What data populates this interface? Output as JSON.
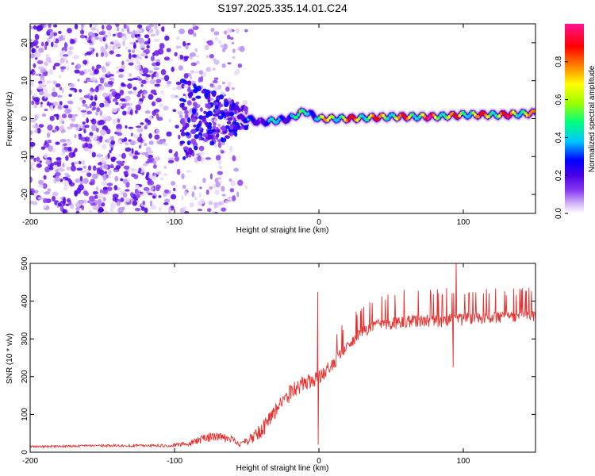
{
  "figure_title": "S197.2025.335.14.01.C24",
  "chart_data": [
    {
      "type": "heatmap",
      "title": "S197.2025.335.14.01.C24",
      "xlabel": "Height of straight line (km)",
      "ylabel": "Frequency (Hz)",
      "xlim": [
        -200,
        150
      ],
      "ylim": [
        -25,
        25
      ],
      "xticks": [
        -200,
        -100,
        0,
        100
      ],
      "xtick_labels": [
        "-200",
        "-100",
        "0",
        "100"
      ],
      "yticks": [
        -20,
        -10,
        0,
        10,
        20
      ],
      "ytick_labels": [
        "-20",
        "-10",
        "0",
        "10",
        "20"
      ],
      "colorbar": {
        "label": "Normalized spectral amplitude",
        "range": [
          0,
          1
        ],
        "ticks": [
          0,
          0.2,
          0.4,
          0.6,
          0.8
        ],
        "tick_labels": [
          "0.0",
          "0.2",
          "0.4",
          "0.6",
          "0.8"
        ],
        "colormap": [
          "#ffffff",
          "#d5b8f8",
          "#8a3cf0",
          "#5500e0",
          "#0000ff",
          "#00c8ff",
          "#00ff80",
          "#9bff00",
          "#ffff00",
          "#ff8000",
          "#ff0000",
          "#ff1493"
        ]
      },
      "ridge": {
        "description_regions": [
          "scattered noise",
          "transition",
          "stable line"
        ],
        "x": [
          -200,
          -100,
          -60,
          -50,
          -40,
          -20,
          -10,
          0,
          20,
          50,
          80,
          100,
          130,
          150
        ],
        "frequency_hz": [
          0,
          3,
          0,
          0,
          -1,
          0,
          2,
          0,
          0,
          0.5,
          0.5,
          1,
          1,
          1.5
        ],
        "amplitude": [
          0.1,
          0.2,
          0.25,
          0.4,
          0.45,
          0.55,
          0.6,
          0.7,
          0.95,
          0.85,
          0.95,
          0.85,
          0.95,
          0.8
        ]
      }
    },
    {
      "type": "line",
      "xlabel": "Height of straight line (km)",
      "ylabel": "SNR (10 * v/v)",
      "xlim": [
        -200,
        150
      ],
      "ylim": [
        0,
        500
      ],
      "xticks": [
        -200,
        -100,
        0,
        100
      ],
      "xtick_labels": [
        "-200",
        "-100",
        "0",
        "100"
      ],
      "yticks": [
        0,
        100,
        200,
        300,
        400,
        500
      ],
      "ytick_labels": [
        "0",
        "100",
        "200",
        "300",
        "400",
        "500"
      ],
      "color": "#e8302e",
      "series": [
        {
          "name": "SNR",
          "x": [
            -200,
            -150,
            -110,
            -100,
            -90,
            -80,
            -70,
            -60,
            -55,
            -50,
            -40,
            -30,
            -20,
            -10,
            0,
            10,
            20,
            30,
            40,
            50,
            60,
            80,
            100,
            120,
            150
          ],
          "base": [
            15,
            18,
            18,
            20,
            22,
            40,
            45,
            35,
            20,
            30,
            60,
            110,
            160,
            190,
            200,
            240,
            280,
            320,
            340,
            345,
            350,
            350,
            355,
            360,
            365
          ],
          "amp": [
            10,
            12,
            15,
            20,
            30,
            50,
            50,
            40,
            20,
            50,
            80,
            90,
            90,
            80,
            80,
            70,
            60,
            60,
            60,
            70,
            70,
            70,
            70,
            60,
            60
          ]
        }
      ],
      "spikes": [
        {
          "x": -1,
          "y": 425
        },
        {
          "x": 95,
          "y": 500
        },
        {
          "x": 93,
          "y": 225
        },
        {
          "x": -0.5,
          "y": 20
        }
      ]
    }
  ]
}
